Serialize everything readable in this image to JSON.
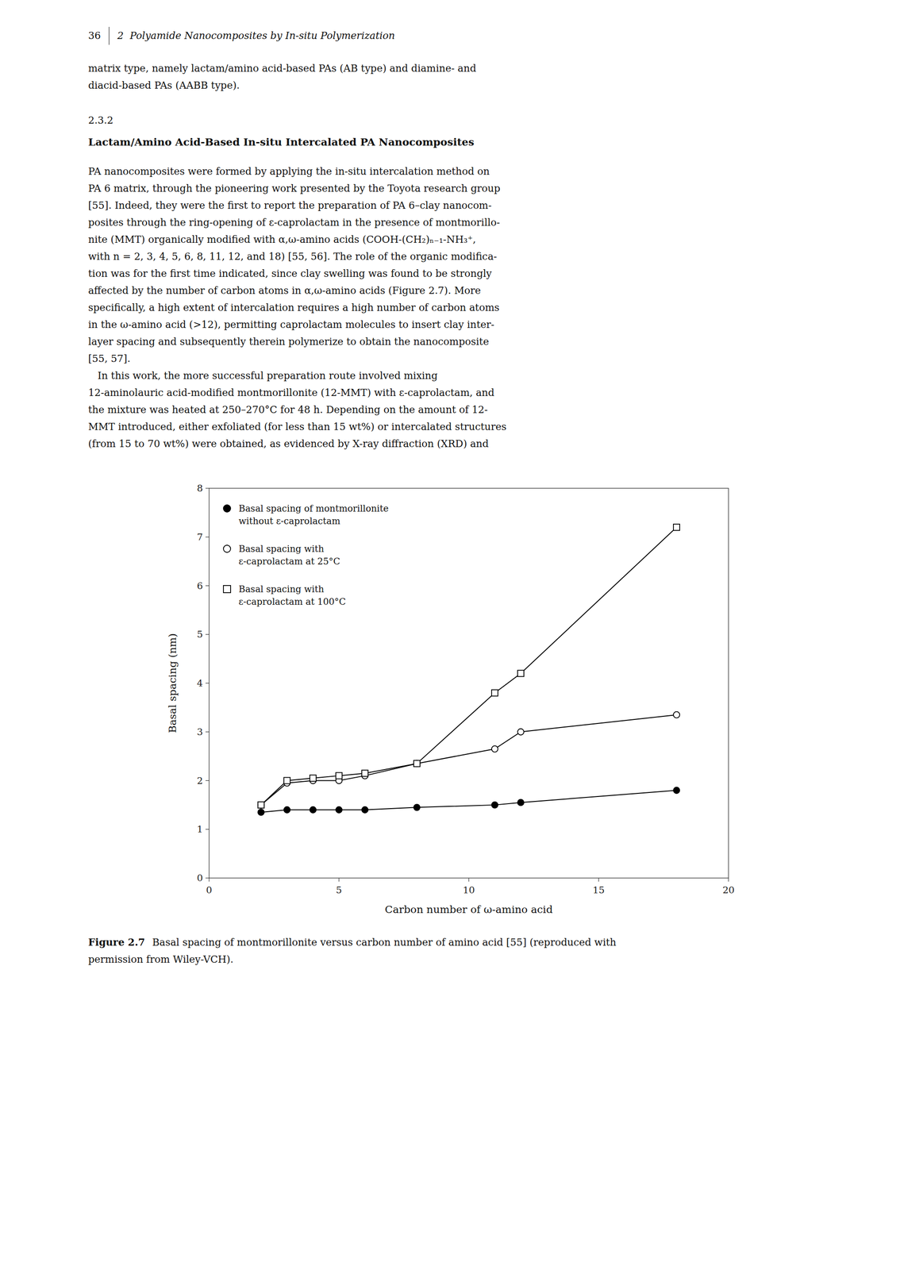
{
  "page": {
    "header": {
      "page": "36",
      "chapter": "2",
      "title": "Polyamide Nanocomposites by In-situ Polymerization"
    },
    "intro_lines": [
      "matrix type, namely lactam/amino acid-based PAs (AB type) and diamine- and",
      "diacid-based PAs (AABB type)."
    ],
    "section_number": "2.3.2",
    "section_title": "Lactam/Amino Acid-Based In-situ Intercalated PA Nanocomposites",
    "paragraph1_lines": [
      "PA nanocomposites were formed by applying the in-situ intercalation method on",
      "PA 6 matrix, through the pioneering work presented by the Toyota research group",
      "[55]. Indeed, they were the first to report the preparation of PA 6–clay nanocom-",
      "posites through the ring-opening of ε-caprolactam in the presence of montmorillo-",
      "nite (MMT) organically modified with α,ω-amino acids (COOH-(CH₂)ₙ₋₁-NH₃⁺,",
      "with n = 2, 3, 4, 5, 6, 8, 11, 12, and 18) [55, 56]. The role of the organic modifica-",
      "tion was for the first time indicated, since clay swelling was found to be strongly",
      "affected by the number of carbon atoms in α,ω-amino acids (Figure 2.7). More",
      "specifically, a high extent of intercalation requires a high number of carbon atoms",
      "in the ω-amino acid (>12), permitting caprolactam molecules to insert clay inter-",
      "layer spacing and subsequently therein polymerize to obtain the nanocomposite",
      "[55, 57]."
    ],
    "paragraph2_lines": [
      "   In this work, the more successful preparation route involved mixing",
      "12-aminolauric acid-modified montmorillonite (12-MMT) with ε-caprolactam, and",
      "the mixture was heated at 250–270°C for 48 h. Depending on the amount of 12-",
      "MMT introduced, either exfoliated (for less than 15 wt%) or intercalated structures",
      "(from 15 to 70 wt%) were obtained, as evidenced by X-ray diffraction (XRD) and"
    ]
  },
  "chart_data": {
    "type": "line",
    "title": "Figure 2.7",
    "subtitle": "Basal spacing of montmorillonite versus carbon number of amino acid [55] (reproduced with permission from Wiley-VCH).",
    "x_label": "Carbon number of ω-amino acid",
    "y_label": "Basal spacing (nm)",
    "x": [
      2,
      3,
      4,
      5,
      6,
      8,
      11,
      12,
      18
    ],
    "series": [
      {
        "name": "Basal spacing of montmorillonite\nwithout ε-caprolactam",
        "color": "#000000",
        "marker": "filled-circle",
        "line_style": "solid",
        "values": [
          1.35,
          1.4,
          1.4,
          1.4,
          1.4,
          1.45,
          1.5,
          1.55,
          1.8
        ]
      },
      {
        "name": "Basal spacing with\nε-caprolactam at 25°C",
        "color": "#000000",
        "marker": "open-circle",
        "line_style": "solid",
        "values": [
          1.5,
          1.95,
          2.0,
          2.0,
          2.1,
          2.35,
          2.65,
          3.0,
          3.35
        ]
      },
      {
        "name": "Basal spacing with\nε-caprolactam at 100°C",
        "color": "#000000",
        "marker": "open-square",
        "line_style": "solid",
        "values": [
          1.5,
          2.0,
          2.05,
          2.1,
          2.15,
          2.35,
          3.8,
          4.2,
          7.2
        ]
      }
    ],
    "xlim": [
      0,
      20
    ],
    "ylim": [
      0,
      8
    ],
    "xticks": [
      0,
      5,
      10,
      15,
      20
    ],
    "yticks": [
      0,
      1,
      2,
      3,
      4,
      5,
      6,
      7,
      8
    ],
    "grid": false,
    "legend": "upper left"
  }
}
